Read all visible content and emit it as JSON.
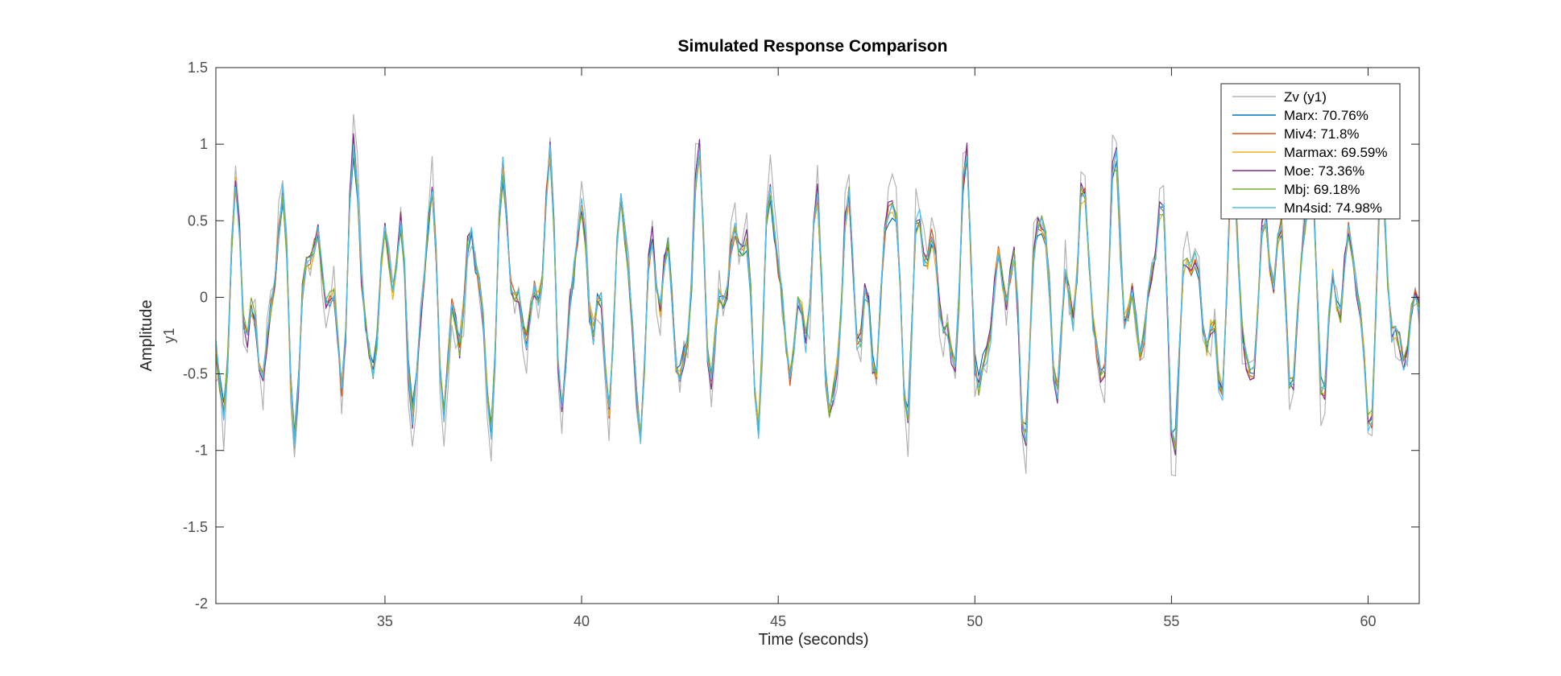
{
  "chart_data": {
    "type": "line",
    "title": "Simulated Response Comparison",
    "xlabel": "Time (seconds)",
    "ylabel": "Amplitude",
    "ylabel_sub": "y1",
    "xlim": [
      30.7,
      61.3
    ],
    "ylim": [
      -2,
      1.5
    ],
    "xticks": [
      35,
      40,
      45,
      50,
      55,
      60
    ],
    "xtick_labels": [
      "35",
      "40",
      "45",
      "50",
      "55",
      "60"
    ],
    "yticks": [
      -2,
      -1.5,
      -1,
      -0.5,
      0,
      0.5,
      1,
      1.5
    ],
    "ytick_labels": [
      "-2",
      "-1.5",
      "-1",
      "-0.5",
      "0",
      "0.5",
      "1",
      "1.5"
    ],
    "grid": false,
    "legend_position": "top-right",
    "time_step": 0.1,
    "series": [
      {
        "name": "Zv (y1)",
        "color": "#b3b3b3",
        "seed": 0,
        "amp": 1.0
      },
      {
        "name": "Marx: 70.76%",
        "color": "#0072bd",
        "seed": 1,
        "amp": 0.82
      },
      {
        "name": "Miv4: 71.8%",
        "color": "#d95319",
        "seed": 2,
        "amp": 0.86
      },
      {
        "name": "Marmax: 69.59%",
        "color": "#edb120",
        "seed": 3,
        "amp": 0.84
      },
      {
        "name": "Moe: 73.36%",
        "color": "#7e2f8e",
        "seed": 4,
        "amp": 0.9
      },
      {
        "name": "Mbj: 69.18%",
        "color": "#77ac30",
        "seed": 5,
        "amp": 0.85
      },
      {
        "name": "Mn4sid: 74.98%",
        "color": "#4dbeee",
        "seed": 6,
        "amp": 0.88
      }
    ]
  }
}
